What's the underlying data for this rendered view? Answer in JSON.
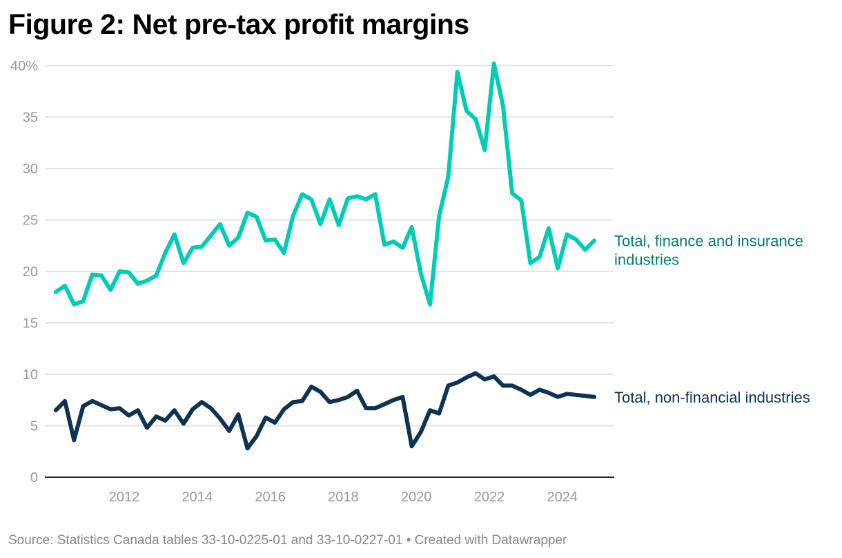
{
  "title": "Figure 2: Net pre-tax profit margins",
  "source": "Source: Statistics Canada tables 33-10-0225-01 and 33-10-0227-01 • Created with Datawrapper",
  "chart_data": {
    "type": "line",
    "title": "Figure 2: Net pre-tax profit margins",
    "xlabel": "",
    "ylabel": "",
    "ylim": [
      0,
      40
    ],
    "yticks": [
      0,
      5,
      10,
      15,
      20,
      25,
      30,
      35,
      40
    ],
    "ytick_labels": [
      "0",
      "5",
      "10",
      "15",
      "20",
      "25",
      "30",
      "35",
      "40%"
    ],
    "xticks": [
      "2012",
      "2014",
      "2016",
      "2018",
      "2020",
      "2022",
      "2024"
    ],
    "x_start": "2010 Q1",
    "x_end": "2024 Q4",
    "frequency": "quarterly",
    "grid": "horizontal",
    "legend": "direct labels at right",
    "series": [
      {
        "name": "Total, finance and insurance industries",
        "color": "#00cdb5",
        "label_color": "#00806f",
        "values": [
          18.0,
          18.6,
          16.8,
          17.1,
          19.7,
          19.6,
          18.2,
          20.0,
          19.9,
          18.8,
          19.1,
          19.6,
          21.8,
          23.6,
          20.8,
          22.3,
          22.4,
          23.5,
          24.6,
          22.5,
          23.3,
          25.7,
          25.3,
          23.0,
          23.1,
          21.8,
          25.4,
          27.5,
          27.0,
          24.6,
          27.0,
          24.5,
          27.1,
          27.3,
          27.0,
          27.5,
          22.6,
          22.9,
          22.3,
          24.3,
          19.8,
          16.8,
          25.4,
          29.2,
          39.4,
          35.6,
          34.8,
          31.8,
          40.2,
          36.1,
          27.6,
          26.9,
          20.8,
          21.4,
          24.2,
          20.3,
          23.6,
          23.1,
          22.1,
          23.0
        ]
      },
      {
        "name": "Total, non-financial industries",
        "color": "#0e3252",
        "label_color": "#0e3252",
        "values": [
          6.5,
          7.4,
          3.6,
          6.9,
          7.4,
          7.0,
          6.6,
          6.7,
          6.0,
          6.5,
          4.8,
          5.9,
          5.5,
          6.5,
          5.2,
          6.6,
          7.3,
          6.7,
          5.7,
          4.5,
          6.1,
          2.8,
          4.0,
          5.8,
          5.3,
          6.6,
          7.3,
          7.4,
          8.8,
          8.3,
          7.3,
          7.5,
          7.8,
          8.4,
          6.7,
          6.7,
          7.1,
          7.5,
          7.8,
          3.0,
          4.4,
          6.5,
          6.2,
          8.9,
          9.2,
          9.7,
          10.1,
          9.5,
          9.8,
          8.9,
          8.9,
          8.5,
          8.0,
          8.5,
          8.2,
          7.8,
          8.1,
          8.0,
          7.9,
          7.8
        ]
      }
    ]
  }
}
